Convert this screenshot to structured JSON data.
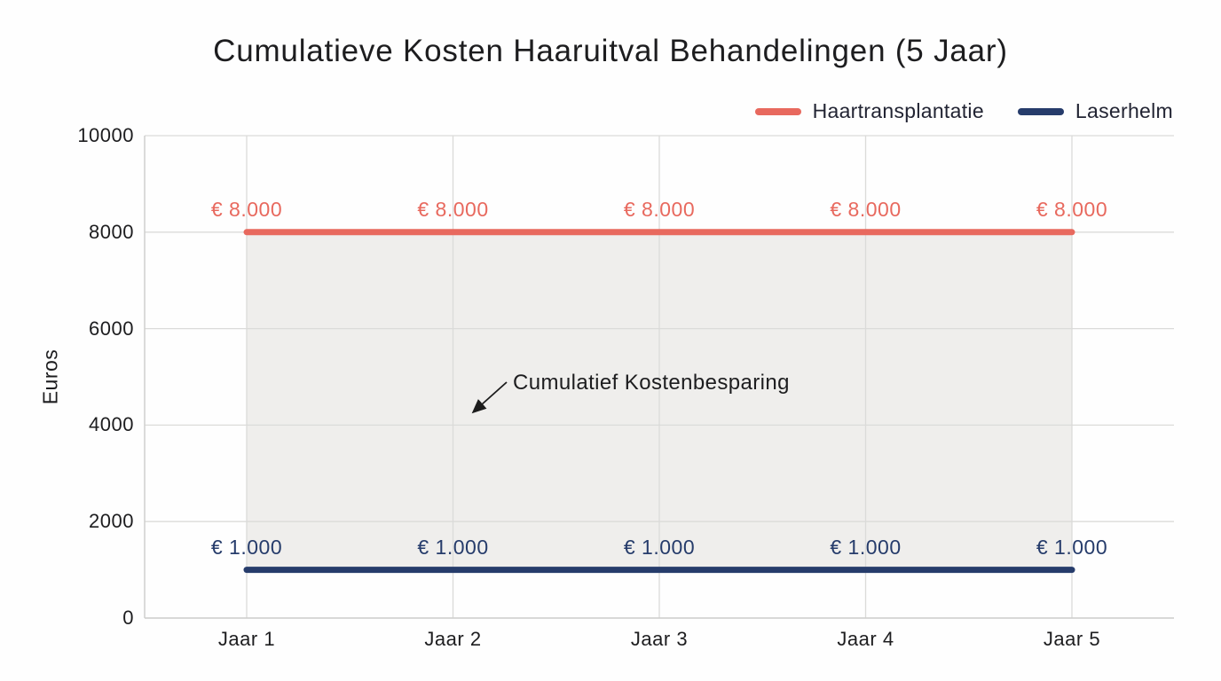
{
  "chart_data": {
    "type": "line",
    "title": "Cumulatieve Kosten Haaruitval Behandelingen (5 Jaar)",
    "xlabel": "",
    "ylabel": "Euros",
    "categories": [
      "Jaar 1",
      "Jaar 2",
      "Jaar 3",
      "Jaar 4",
      "Jaar 5"
    ],
    "series": [
      {
        "name": "Haartransplantatie",
        "color": "#e8695e",
        "values": [
          8000,
          8000,
          8000,
          8000,
          8000
        ],
        "point_labels": [
          "€ 8.000",
          "€ 8.000",
          "€ 8.000",
          "€ 8.000",
          "€ 8.000"
        ]
      },
      {
        "name": "Laserhelm",
        "color": "#263c6b",
        "values": [
          1000,
          1000,
          1000,
          1000,
          1000
        ],
        "point_labels": [
          "€ 1.000",
          "€ 1.000",
          "€ 1.000",
          "€ 1.000",
          "€ 1.000"
        ]
      }
    ],
    "ylim": [
      0,
      10000
    ],
    "y_ticks": [
      0,
      2000,
      4000,
      6000,
      8000,
      10000
    ],
    "grid": true,
    "legend_position": "top-right",
    "annotation": {
      "text": "Cumulatief Kostenbesparing"
    },
    "shaded_band": {
      "between": [
        "Haartransplantatie",
        "Laserhelm"
      ],
      "color": "#efeeec"
    },
    "colors": {
      "grid": "#dbdbd9",
      "axis": "#cfcfcd",
      "text": "#1d1d1f",
      "background": "#ffffff",
      "arrow": "#1c1c1c"
    }
  }
}
